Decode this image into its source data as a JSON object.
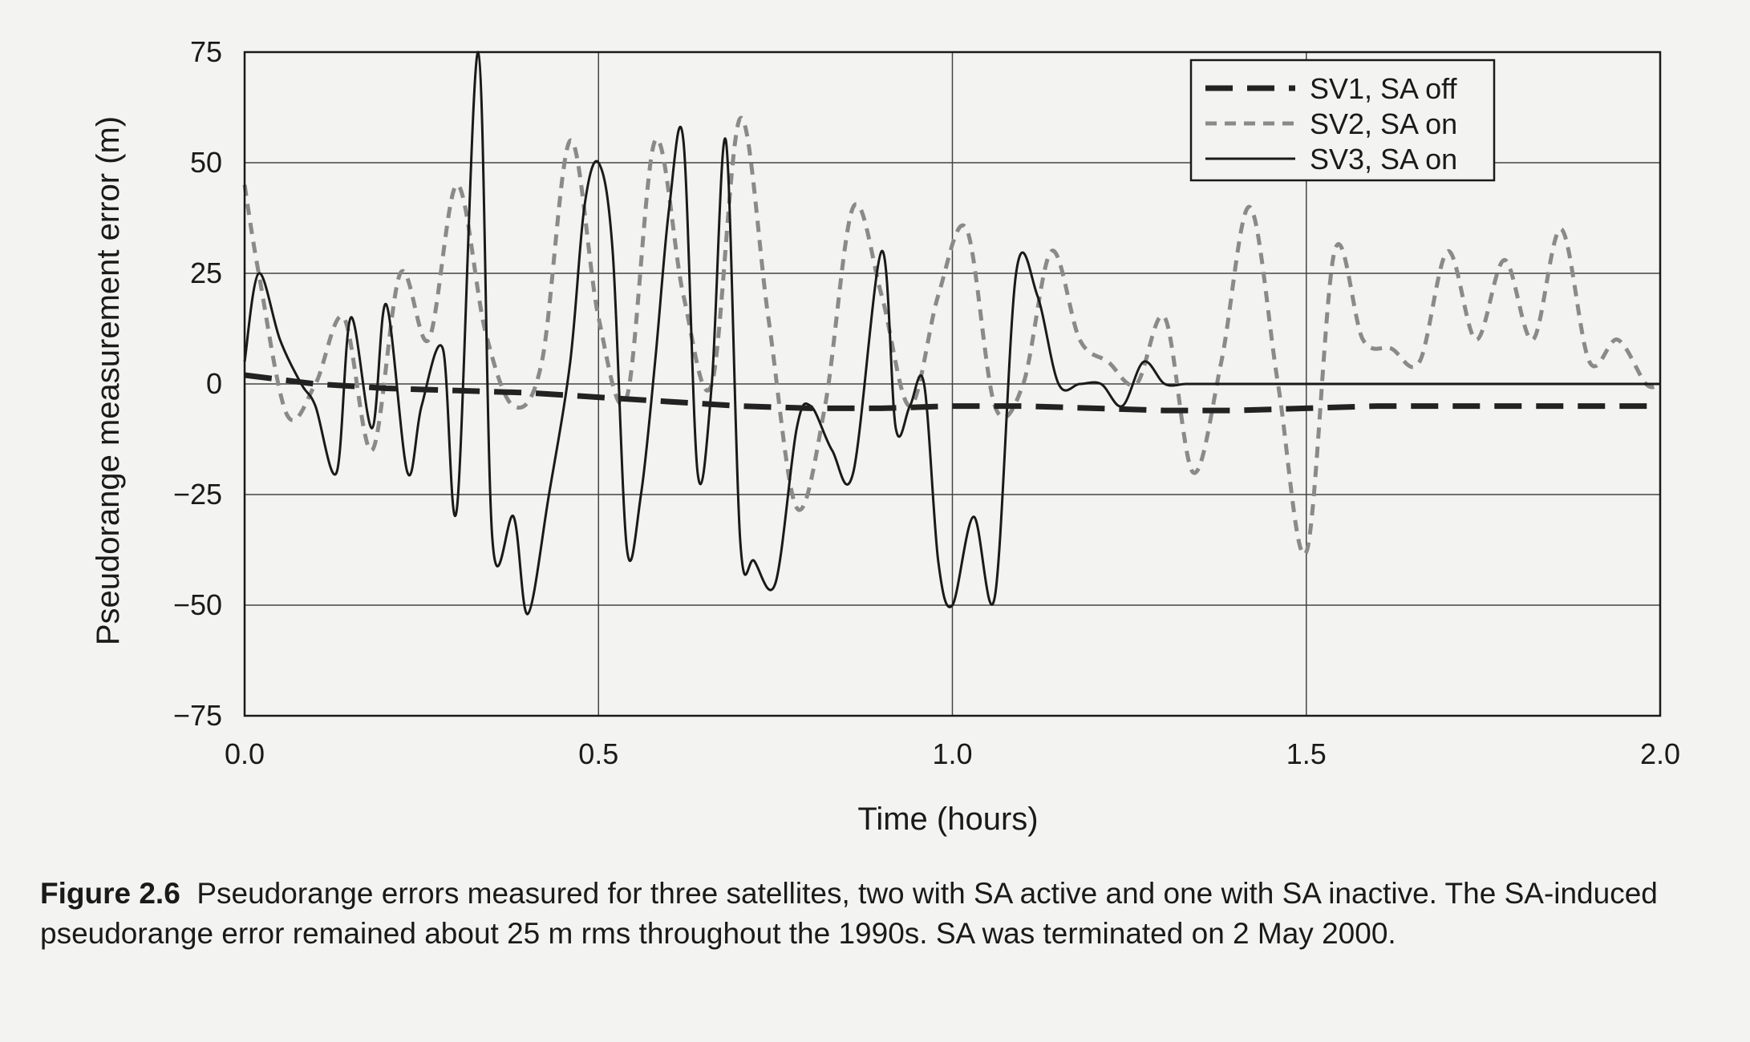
{
  "caption": {
    "label": "Figure 2.6",
    "text": "Pseudorange errors measured for three satellites, two with SA active and one with SA inactive. The SA-induced pseudorange error remained about 25 m rms throughout the 1990s. SA was terminated on 2 May 2000."
  },
  "colors": {
    "sv1": "#222222",
    "sv2": "#8a8a8a",
    "sv3": "#1a1a1a",
    "grid": "#444444",
    "background": "#f3f3f1"
  },
  "chart_data": {
    "type": "line",
    "title": "",
    "xlabel": "Time (hours)",
    "ylabel": "Pseudorange measurement error (m)",
    "xlim": [
      0.0,
      2.0
    ],
    "ylim": [
      -75,
      75
    ],
    "xticks": [
      "0.0",
      "0.5",
      "1.0",
      "1.5",
      "2.0"
    ],
    "yticks": [
      "75",
      "50",
      "25",
      "0",
      "-25",
      "-50",
      "-75"
    ],
    "xtick_values": [
      0.0,
      0.5,
      1.0,
      1.5,
      2.0
    ],
    "ytick_values": [
      75,
      50,
      25,
      0,
      -25,
      -50,
      -75
    ],
    "grid": true,
    "legend": "top-right",
    "series": [
      {
        "name": "SV1, SA off",
        "style": "long-dash",
        "x": [
          0.0,
          0.1,
          0.2,
          0.3,
          0.4,
          0.5,
          0.6,
          0.7,
          0.8,
          0.9,
          1.0,
          1.1,
          1.2,
          1.3,
          1.4,
          1.5,
          1.6,
          1.7,
          1.8,
          1.9,
          2.0
        ],
        "y": [
          2,
          0,
          -1,
          -1.5,
          -2,
          -3,
          -4,
          -5,
          -5.5,
          -5.5,
          -5,
          -5,
          -5.5,
          -6,
          -6,
          -5.5,
          -5,
          -5,
          -5,
          -5,
          -5
        ]
      },
      {
        "name": "SV2, SA on",
        "style": "short-dash",
        "x": [
          0.0,
          0.02,
          0.06,
          0.1,
          0.14,
          0.18,
          0.22,
          0.26,
          0.3,
          0.34,
          0.38,
          0.42,
          0.46,
          0.5,
          0.54,
          0.58,
          0.62,
          0.66,
          0.7,
          0.74,
          0.78,
          0.82,
          0.86,
          0.9,
          0.94,
          0.98,
          1.02,
          1.06,
          1.1,
          1.14,
          1.18,
          1.22,
          1.26,
          1.3,
          1.34,
          1.38,
          1.42,
          1.46,
          1.5,
          1.54,
          1.58,
          1.62,
          1.66,
          1.7,
          1.74,
          1.78,
          1.82,
          1.86,
          1.9,
          1.94,
          1.98,
          2.0
        ],
        "y": [
          45,
          25,
          -7,
          0,
          15,
          -15,
          25,
          10,
          45,
          12,
          -5,
          5,
          55,
          15,
          -3,
          55,
          20,
          0,
          60,
          15,
          -28,
          -5,
          40,
          20,
          -5,
          20,
          35,
          -5,
          0,
          30,
          10,
          5,
          0,
          15,
          -20,
          5,
          40,
          0,
          -38,
          30,
          10,
          8,
          5,
          30,
          10,
          28,
          10,
          35,
          5,
          10,
          0,
          0
        ]
      },
      {
        "name": "SV3, SA on",
        "style": "solid",
        "x": [
          0.0,
          0.02,
          0.05,
          0.08,
          0.1,
          0.13,
          0.15,
          0.18,
          0.2,
          0.23,
          0.25,
          0.28,
          0.3,
          0.33,
          0.35,
          0.38,
          0.4,
          0.43,
          0.46,
          0.48,
          0.5,
          0.52,
          0.54,
          0.56,
          0.58,
          0.6,
          0.62,
          0.64,
          0.66,
          0.68,
          0.7,
          0.72,
          0.75,
          0.78,
          0.8,
          0.83,
          0.86,
          0.9,
          0.92,
          0.94,
          0.96,
          0.98,
          1.0,
          1.03,
          1.06,
          1.09,
          1.12,
          1.15,
          1.18,
          1.21,
          1.24,
          1.27,
          1.3,
          1.33,
          1.36,
          1.39,
          1.42,
          1.45,
          1.48,
          1.51,
          1.54,
          1.57,
          1.6,
          1.63,
          1.66,
          1.69,
          1.72,
          1.75,
          1.78,
          1.81,
          1.84,
          1.87,
          1.9,
          1.93,
          1.96,
          2.0
        ],
        "y": [
          5,
          25,
          10,
          0,
          -5,
          -20,
          15,
          -10,
          18,
          -20,
          -5,
          8,
          -28,
          75,
          -35,
          -30,
          -52,
          -25,
          5,
          40,
          50,
          30,
          -37,
          -25,
          5,
          40,
          55,
          -20,
          0,
          55,
          -35,
          -40,
          -45,
          -10,
          -5,
          -15,
          -20,
          30,
          -10,
          -5,
          0,
          -40,
          -50,
          -30,
          -48,
          25,
          20,
          0,
          0,
          0,
          -5,
          5,
          0,
          0,
          0,
          0,
          0,
          0,
          0,
          0,
          0,
          0,
          0,
          0,
          0,
          0,
          0,
          0,
          0,
          0,
          0,
          0,
          0,
          0,
          0,
          0
        ]
      }
    ]
  }
}
